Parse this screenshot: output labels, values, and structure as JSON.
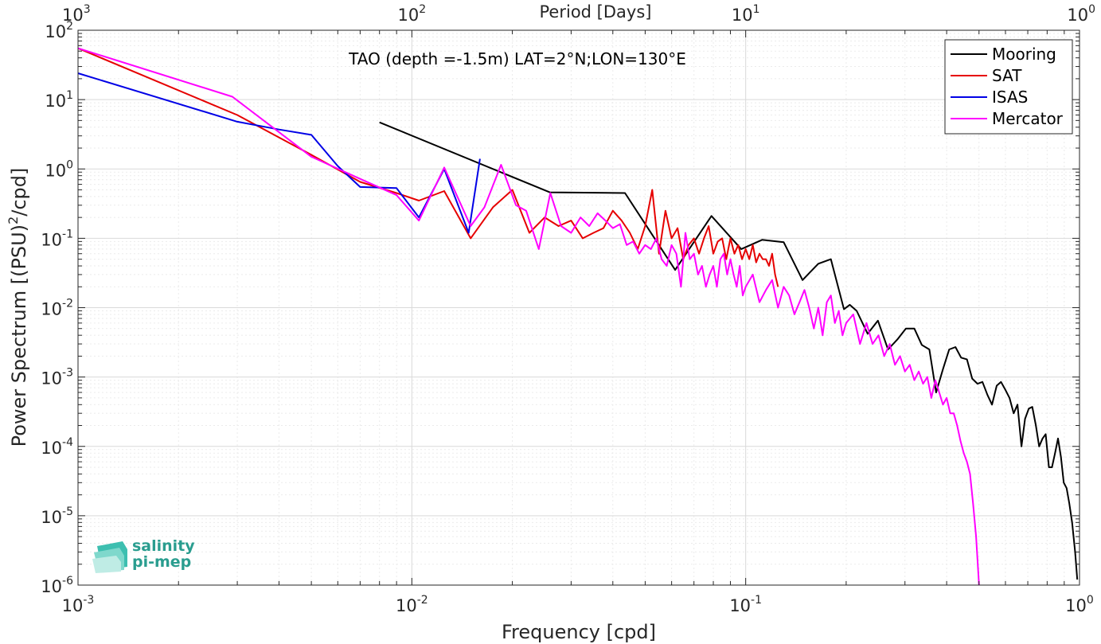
{
  "chart_data": {
    "type": "line",
    "title": "TAO (depth =-1.5m) LAT=2°N;LON=130°E",
    "xlabel": "Frequency [cpd]",
    "ylabel_parts": [
      "Power Spectrum [(PSU)",
      "2",
      "/cpd]"
    ],
    "top_xlabel": "Period [Days]",
    "x_scale": "log",
    "y_scale": "log",
    "xlim": [
      0.001,
      1
    ],
    "ylim": [
      1e-06,
      100
    ],
    "x_ticks": [
      {
        "value": 0.001,
        "base": "10",
        "exp": "-3"
      },
      {
        "value": 0.01,
        "base": "10",
        "exp": "-2"
      },
      {
        "value": 0.1,
        "base": "10",
        "exp": "-1"
      },
      {
        "value": 1,
        "base": "10",
        "exp": "0"
      }
    ],
    "top_ticks": [
      {
        "value": 1000,
        "base": "10",
        "exp": "3"
      },
      {
        "value": 100,
        "base": "10",
        "exp": "2"
      },
      {
        "value": 10,
        "base": "10",
        "exp": "1"
      },
      {
        "value": 1,
        "base": "10",
        "exp": "0"
      }
    ],
    "y_ticks": [
      {
        "value": 100,
        "base": "10",
        "exp": "2"
      },
      {
        "value": 10,
        "base": "10",
        "exp": "1"
      },
      {
        "value": 1,
        "base": "10",
        "exp": "0"
      },
      {
        "value": 0.1,
        "base": "10",
        "exp": "-1"
      },
      {
        "value": 0.01,
        "base": "10",
        "exp": "-2"
      },
      {
        "value": 0.001,
        "base": "10",
        "exp": "-3"
      },
      {
        "value": 0.0001,
        "base": "10",
        "exp": "-4"
      },
      {
        "value": 1e-05,
        "base": "10",
        "exp": "-5"
      },
      {
        "value": 1e-06,
        "base": "10",
        "exp": "-6"
      }
    ],
    "grid": true,
    "minor_grid": true,
    "legend_position": "top-right",
    "series": [
      {
        "name": "Mooring",
        "color": "#000000",
        "points": [
          [
            0.008,
            4.7
          ],
          [
            0.0259,
            0.46
          ],
          [
            0.0435,
            0.45
          ],
          [
            0.0615,
            0.035
          ],
          [
            0.079,
            0.21
          ],
          [
            0.097,
            0.07
          ],
          [
            0.112,
            0.095
          ],
          [
            0.13,
            0.088
          ],
          [
            0.148,
            0.025
          ],
          [
            0.165,
            0.043
          ],
          [
            0.18,
            0.05
          ],
          [
            0.197,
            0.0095
          ],
          [
            0.205,
            0.011
          ],
          [
            0.215,
            0.009
          ],
          [
            0.232,
            0.0042
          ],
          [
            0.249,
            0.0065
          ],
          [
            0.267,
            0.0025
          ],
          [
            0.285,
            0.0035
          ],
          [
            0.302,
            0.005
          ],
          [
            0.32,
            0.005
          ],
          [
            0.337,
            0.0029
          ],
          [
            0.355,
            0.0025
          ],
          [
            0.372,
            0.0006
          ],
          [
            0.39,
            0.0013
          ],
          [
            0.407,
            0.0025
          ],
          [
            0.425,
            0.0027
          ],
          [
            0.442,
            0.0019
          ],
          [
            0.46,
            0.0018
          ],
          [
            0.477,
            0.00095
          ],
          [
            0.495,
            0.0008
          ],
          [
            0.512,
            0.00085
          ],
          [
            0.53,
            0.00055
          ],
          [
            0.547,
            0.0004
          ],
          [
            0.565,
            0.00075
          ],
          [
            0.582,
            0.00085
          ],
          [
            0.6,
            0.00065
          ],
          [
            0.617,
            0.0005
          ],
          [
            0.635,
            0.0003
          ],
          [
            0.652,
            0.0004
          ],
          [
            0.67,
            0.0001
          ],
          [
            0.687,
            0.00025
          ],
          [
            0.705,
            0.00035
          ],
          [
            0.722,
            0.00037
          ],
          [
            0.74,
            0.0002
          ],
          [
            0.757,
            0.0001
          ],
          [
            0.775,
            0.00013
          ],
          [
            0.792,
            0.00015
          ],
          [
            0.81,
            5e-05
          ],
          [
            0.827,
            5e-05
          ],
          [
            0.845,
            8e-05
          ],
          [
            0.862,
            0.00013
          ],
          [
            0.88,
            7e-05
          ],
          [
            0.897,
            3e-05
          ],
          [
            0.915,
            2.5e-05
          ],
          [
            0.932,
            1.5e-05
          ],
          [
            0.95,
            8e-06
          ],
          [
            0.97,
            3e-06
          ],
          [
            0.985,
            1.2e-06
          ]
        ]
      },
      {
        "name": "SAT",
        "color": "#e60000",
        "points": [
          [
            0.001,
            55
          ],
          [
            0.003,
            6
          ],
          [
            0.005,
            1.6
          ],
          [
            0.007,
            0.65
          ],
          [
            0.009,
            0.45
          ],
          [
            0.0105,
            0.35
          ],
          [
            0.0125,
            0.48
          ],
          [
            0.015,
            0.1
          ],
          [
            0.0175,
            0.28
          ],
          [
            0.02,
            0.5
          ],
          [
            0.0225,
            0.12
          ],
          [
            0.025,
            0.2
          ],
          [
            0.0275,
            0.15
          ],
          [
            0.03,
            0.18
          ],
          [
            0.0325,
            0.1
          ],
          [
            0.035,
            0.12
          ],
          [
            0.0375,
            0.14
          ],
          [
            0.04,
            0.25
          ],
          [
            0.0425,
            0.18
          ],
          [
            0.045,
            0.12
          ],
          [
            0.0475,
            0.07
          ],
          [
            0.05,
            0.15
          ],
          [
            0.0525,
            0.5
          ],
          [
            0.055,
            0.06
          ],
          [
            0.0575,
            0.25
          ],
          [
            0.06,
            0.1
          ],
          [
            0.0625,
            0.14
          ],
          [
            0.065,
            0.05
          ],
          [
            0.0675,
            0.08
          ],
          [
            0.07,
            0.1
          ],
          [
            0.0725,
            0.06
          ],
          [
            0.075,
            0.1
          ],
          [
            0.0775,
            0.15
          ],
          [
            0.08,
            0.06
          ],
          [
            0.0825,
            0.09
          ],
          [
            0.085,
            0.1
          ],
          [
            0.0875,
            0.05
          ],
          [
            0.09,
            0.1
          ],
          [
            0.0925,
            0.06
          ],
          [
            0.095,
            0.08
          ],
          [
            0.0975,
            0.05
          ],
          [
            0.1,
            0.07
          ],
          [
            0.1025,
            0.05
          ],
          [
            0.105,
            0.08
          ],
          [
            0.1075,
            0.045
          ],
          [
            0.11,
            0.06
          ],
          [
            0.1125,
            0.05
          ],
          [
            0.115,
            0.05
          ],
          [
            0.1175,
            0.04
          ],
          [
            0.12,
            0.06
          ],
          [
            0.1225,
            0.03
          ],
          [
            0.125,
            0.02
          ]
        ]
      },
      {
        "name": "ISAS",
        "color": "#0000e6",
        "points": [
          [
            0.001,
            24
          ],
          [
            0.003,
            4.8
          ],
          [
            0.004,
            3.7
          ],
          [
            0.005,
            3.1
          ],
          [
            0.006,
            1.1
          ],
          [
            0.007,
            0.55
          ],
          [
            0.008,
            0.54
          ],
          [
            0.009,
            0.53
          ],
          [
            0.0105,
            0.2
          ],
          [
            0.0125,
            1.0
          ],
          [
            0.0148,
            0.12
          ],
          [
            0.016,
            1.4
          ]
        ]
      },
      {
        "name": "Mercator",
        "color": "#ff00ff",
        "points": [
          [
            0.001,
            55
          ],
          [
            0.0029,
            11
          ],
          [
            0.005,
            1.5
          ],
          [
            0.007,
            0.72
          ],
          [
            0.009,
            0.42
          ],
          [
            0.0105,
            0.18
          ],
          [
            0.0125,
            1.05
          ],
          [
            0.015,
            0.15
          ],
          [
            0.0165,
            0.28
          ],
          [
            0.0185,
            1.15
          ],
          [
            0.0205,
            0.3
          ],
          [
            0.022,
            0.25
          ],
          [
            0.024,
            0.07
          ],
          [
            0.026,
            0.45
          ],
          [
            0.028,
            0.15
          ],
          [
            0.03,
            0.12
          ],
          [
            0.032,
            0.2
          ],
          [
            0.034,
            0.15
          ],
          [
            0.036,
            0.23
          ],
          [
            0.038,
            0.18
          ],
          [
            0.04,
            0.14
          ],
          [
            0.042,
            0.16
          ],
          [
            0.044,
            0.08
          ],
          [
            0.046,
            0.09
          ],
          [
            0.048,
            0.06
          ],
          [
            0.05,
            0.08
          ],
          [
            0.052,
            0.07
          ],
          [
            0.054,
            0.1
          ],
          [
            0.056,
            0.05
          ],
          [
            0.058,
            0.04
          ],
          [
            0.06,
            0.08
          ],
          [
            0.062,
            0.06
          ],
          [
            0.064,
            0.02
          ],
          [
            0.066,
            0.12
          ],
          [
            0.068,
            0.05
          ],
          [
            0.07,
            0.06
          ],
          [
            0.072,
            0.03
          ],
          [
            0.074,
            0.04
          ],
          [
            0.076,
            0.02
          ],
          [
            0.078,
            0.03
          ],
          [
            0.08,
            0.04
          ],
          [
            0.082,
            0.02
          ],
          [
            0.084,
            0.05
          ],
          [
            0.086,
            0.06
          ],
          [
            0.088,
            0.03
          ],
          [
            0.09,
            0.05
          ],
          [
            0.092,
            0.03
          ],
          [
            0.094,
            0.02
          ],
          [
            0.096,
            0.04
          ],
          [
            0.098,
            0.015
          ],
          [
            0.1,
            0.02
          ],
          [
            0.105,
            0.03
          ],
          [
            0.11,
            0.012
          ],
          [
            0.115,
            0.018
          ],
          [
            0.12,
            0.025
          ],
          [
            0.125,
            0.01
          ],
          [
            0.13,
            0.02
          ],
          [
            0.135,
            0.015
          ],
          [
            0.14,
            0.008
          ],
          [
            0.145,
            0.012
          ],
          [
            0.15,
            0.018
          ],
          [
            0.155,
            0.01
          ],
          [
            0.16,
            0.005
          ],
          [
            0.165,
            0.01
          ],
          [
            0.17,
            0.004
          ],
          [
            0.175,
            0.012
          ],
          [
            0.18,
            0.015
          ],
          [
            0.185,
            0.006
          ],
          [
            0.19,
            0.009
          ],
          [
            0.195,
            0.004
          ],
          [
            0.2,
            0.006
          ],
          [
            0.21,
            0.008
          ],
          [
            0.22,
            0.003
          ],
          [
            0.23,
            0.006
          ],
          [
            0.24,
            0.003
          ],
          [
            0.25,
            0.004
          ],
          [
            0.26,
            0.002
          ],
          [
            0.27,
            0.003
          ],
          [
            0.28,
            0.0015
          ],
          [
            0.29,
            0.002
          ],
          [
            0.3,
            0.0012
          ],
          [
            0.31,
            0.0015
          ],
          [
            0.32,
            0.0009
          ],
          [
            0.33,
            0.0012
          ],
          [
            0.34,
            0.0008
          ],
          [
            0.35,
            0.001
          ],
          [
            0.36,
            0.0005
          ],
          [
            0.37,
            0.0009
          ],
          [
            0.38,
            0.0006
          ],
          [
            0.39,
            0.0004
          ],
          [
            0.4,
            0.0005
          ],
          [
            0.41,
            0.0003
          ],
          [
            0.42,
            0.0003
          ],
          [
            0.43,
            0.0002
          ],
          [
            0.44,
            0.00012
          ],
          [
            0.45,
            8e-05
          ],
          [
            0.46,
            6e-05
          ],
          [
            0.47,
            4e-05
          ],
          [
            0.48,
            1.5e-05
          ],
          [
            0.49,
            5e-06
          ],
          [
            0.5,
            1e-06
          ]
        ]
      }
    ]
  },
  "logo": {
    "line1": "salinity",
    "line2": "pi-mep",
    "color": "#2a9d8f"
  }
}
